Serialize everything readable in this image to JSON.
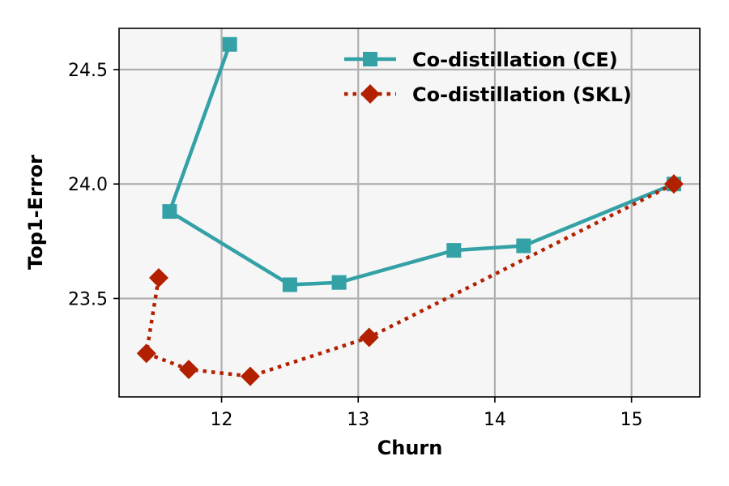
{
  "chart_data": {
    "type": "line",
    "title": "",
    "xlabel": "Churn",
    "ylabel": "Top1-Error",
    "xlim": [
      11.25,
      15.5
    ],
    "ylim": [
      23.07,
      24.68
    ],
    "xticks": [
      12,
      13,
      14,
      15
    ],
    "xtick_labels": [
      "12",
      "13",
      "14",
      "15"
    ],
    "yticks": [
      23.5,
      24.0,
      24.5
    ],
    "ytick_labels": [
      "23.5",
      "24.0",
      "24.5"
    ],
    "grid": true,
    "legend_position": "top-right",
    "series": [
      {
        "name": "Co-distillation (CE)",
        "color": "#33a1a6",
        "line_style": "solid",
        "marker": "square",
        "points": [
          {
            "x": 12.06,
            "y": 24.61
          },
          {
            "x": 11.62,
            "y": 23.88
          },
          {
            "x": 12.5,
            "y": 23.56
          },
          {
            "x": 12.86,
            "y": 23.57
          },
          {
            "x": 13.7,
            "y": 23.71
          },
          {
            "x": 14.21,
            "y": 23.73
          },
          {
            "x": 15.31,
            "y": 24.0
          }
        ]
      },
      {
        "name": "Co-distillation (SKL)",
        "color": "#b22000",
        "line_style": "dotted",
        "marker": "diamond",
        "points": [
          {
            "x": 11.54,
            "y": 23.59
          },
          {
            "x": 11.45,
            "y": 23.26
          },
          {
            "x": 11.76,
            "y": 23.19
          },
          {
            "x": 12.21,
            "y": 23.16
          },
          {
            "x": 13.08,
            "y": 23.33
          },
          {
            "x": 15.31,
            "y": 24.0
          }
        ]
      }
    ]
  }
}
